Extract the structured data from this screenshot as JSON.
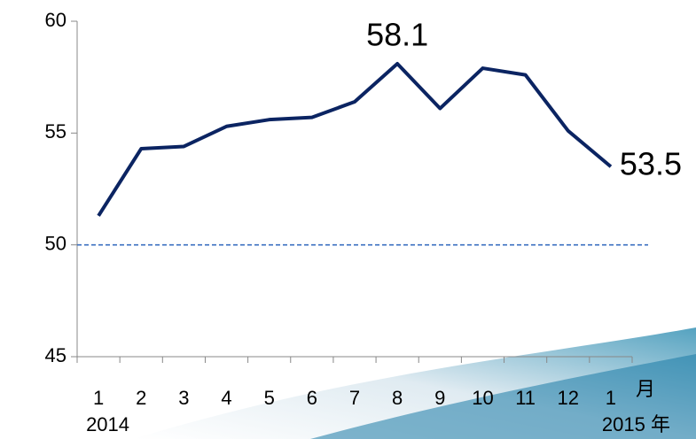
{
  "chart_data": {
    "type": "line",
    "categories": [
      "1",
      "2",
      "3",
      "4",
      "5",
      "6",
      "7",
      "8",
      "9",
      "10",
      "11",
      "12",
      "1"
    ],
    "x_group_labels": [
      "2014",
      null,
      null,
      null,
      null,
      null,
      null,
      null,
      null,
      null,
      null,
      null,
      "2015 年"
    ],
    "x_unit": "月",
    "series": [
      {
        "name": null,
        "color": "#0b2462",
        "values": [
          51.3,
          54.3,
          54.4,
          55.3,
          55.6,
          55.7,
          56.4,
          58.1,
          56.1,
          57.9,
          57.6,
          55.1,
          53.5
        ],
        "value_labels": [
          null,
          null,
          null,
          null,
          null,
          null,
          null,
          "58.1",
          null,
          null,
          null,
          null,
          "53.5"
        ]
      }
    ],
    "ylim": [
      45,
      60
    ],
    "yticks": [
      45,
      50,
      55,
      60
    ],
    "reference_line": {
      "value": 50,
      "color": "#3a6fc0",
      "dashed": true
    }
  }
}
